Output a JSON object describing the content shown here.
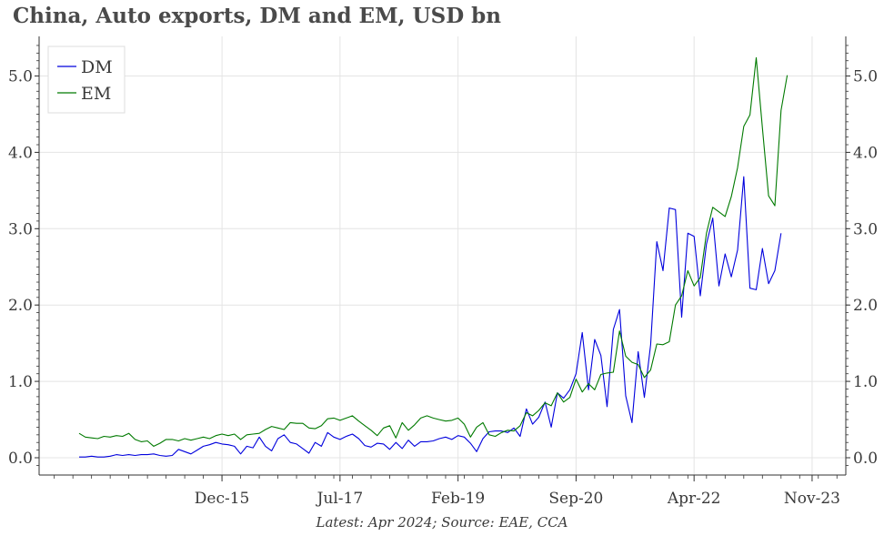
{
  "title": "China, Auto exports, DM and EM, USD bn",
  "footer": "Latest: Apr 2024; Source: EAE, CCA",
  "chart_data": {
    "type": "line",
    "title": "China, Auto exports, DM and EM, USD bn",
    "xlabel": "",
    "ylabel": "",
    "ylim": [
      -0.15,
      5.5
    ],
    "x_tick_labels": [
      "Dec-15",
      "Jul-17",
      "Feb-19",
      "Sep-20",
      "Apr-22",
      "Nov-23"
    ],
    "x_tick_months": [
      "2015-12",
      "2017-07",
      "2019-02",
      "2020-09",
      "2022-04",
      "2023-11"
    ],
    "y_ticks": [
      0,
      1,
      2,
      3,
      4,
      5
    ],
    "y_tick_labels": [
      "0.0",
      "1.0",
      "2.0",
      "3.0",
      "4.0",
      "5.0"
    ],
    "grid": true,
    "legend_position": "top-left",
    "x_start_month": "2014-01",
    "series": [
      {
        "name": "DM",
        "color": "#0000dd",
        "values": [
          0.01,
          0.01,
          0.02,
          0.01,
          0.01,
          0.02,
          0.04,
          0.03,
          0.04,
          0.03,
          0.04,
          0.04,
          0.05,
          0.03,
          0.02,
          0.03,
          0.11,
          0.08,
          0.05,
          0.1,
          0.15,
          0.17,
          0.2,
          0.18,
          0.17,
          0.15,
          0.05,
          0.15,
          0.13,
          0.27,
          0.15,
          0.09,
          0.25,
          0.3,
          0.2,
          0.18,
          0.12,
          0.06,
          0.2,
          0.15,
          0.33,
          0.27,
          0.24,
          0.28,
          0.31,
          0.25,
          0.16,
          0.14,
          0.19,
          0.18,
          0.11,
          0.2,
          0.12,
          0.23,
          0.15,
          0.21,
          0.21,
          0.22,
          0.25,
          0.27,
          0.24,
          0.29,
          0.27,
          0.19,
          0.08,
          0.25,
          0.34,
          0.35,
          0.35,
          0.33,
          0.39,
          0.28,
          0.64,
          0.44,
          0.53,
          0.73,
          0.4,
          0.85,
          0.78,
          0.89,
          1.1,
          1.64,
          0.89,
          1.55,
          1.34,
          0.67,
          1.68,
          1.94,
          0.81,
          0.46,
          1.39,
          0.79,
          1.48,
          2.83,
          2.45,
          3.27,
          3.25,
          1.84,
          2.94,
          2.9,
          2.12,
          2.8,
          3.14,
          2.25,
          2.67,
          2.37,
          2.72,
          3.68,
          2.22,
          2.2,
          2.74,
          2.28,
          2.45,
          2.94
        ]
      },
      {
        "name": "EM",
        "color": "#007a00",
        "values": [
          0.32,
          0.27,
          0.26,
          0.25,
          0.28,
          0.27,
          0.29,
          0.28,
          0.32,
          0.24,
          0.21,
          0.22,
          0.15,
          0.19,
          0.24,
          0.24,
          0.22,
          0.25,
          0.23,
          0.25,
          0.27,
          0.25,
          0.29,
          0.31,
          0.29,
          0.31,
          0.24,
          0.3,
          0.31,
          0.32,
          0.37,
          0.41,
          0.39,
          0.37,
          0.46,
          0.45,
          0.45,
          0.39,
          0.38,
          0.42,
          0.51,
          0.52,
          0.49,
          0.52,
          0.55,
          0.48,
          0.42,
          0.36,
          0.29,
          0.39,
          0.42,
          0.26,
          0.46,
          0.36,
          0.43,
          0.52,
          0.55,
          0.52,
          0.5,
          0.48,
          0.49,
          0.52,
          0.44,
          0.27,
          0.4,
          0.46,
          0.3,
          0.28,
          0.33,
          0.36,
          0.35,
          0.42,
          0.59,
          0.55,
          0.62,
          0.72,
          0.68,
          0.85,
          0.73,
          0.79,
          1.03,
          0.86,
          0.97,
          0.89,
          1.09,
          1.11,
          1.12,
          1.66,
          1.33,
          1.25,
          1.22,
          1.05,
          1.15,
          1.49,
          1.48,
          1.52,
          2.0,
          2.12,
          2.45,
          2.25,
          2.36,
          2.94,
          3.28,
          3.22,
          3.16,
          3.42,
          3.8,
          4.34,
          4.49,
          5.24,
          4.32,
          3.43,
          3.3,
          4.55,
          5.01
        ]
      }
    ]
  }
}
